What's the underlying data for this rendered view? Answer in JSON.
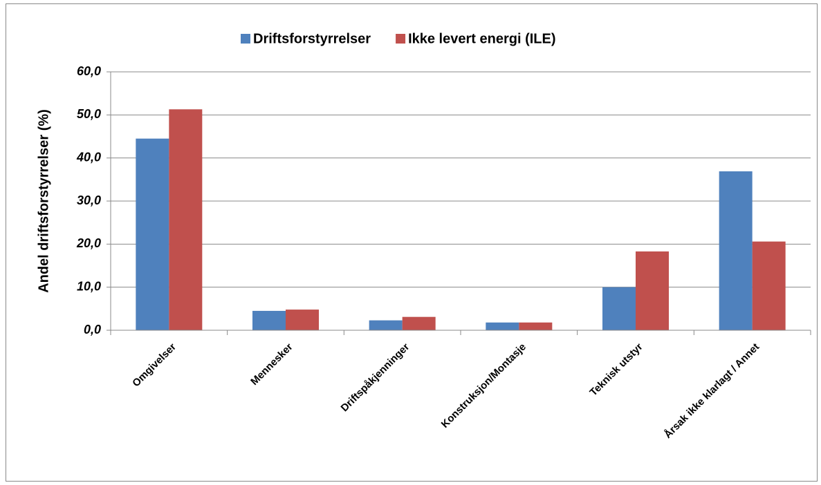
{
  "chart_data": {
    "type": "bar",
    "y_label": "Andel driftsforstyrrelser (%)",
    "categories": [
      "Omgivelser",
      "Mennesker",
      "Driftspåkjenninger",
      "Konstruksjon/Montasje",
      "Teknisk utstyr",
      "Årsak ikke klarlagt / Annet"
    ],
    "series": [
      {
        "name": "Driftsforstyrrelser",
        "color": "#4f81bd",
        "values": [
          44.5,
          4.5,
          2.3,
          1.8,
          10.0,
          36.9
        ]
      },
      {
        "name": "Ikke levert energi (ILE)",
        "color": "#c0504d",
        "values": [
          51.3,
          4.8,
          3.1,
          1.8,
          18.3,
          20.6
        ]
      }
    ],
    "ylim": [
      0,
      60
    ],
    "yticks": [
      {
        "value": 0,
        "label": "0,0"
      },
      {
        "value": 10,
        "label": "10,0"
      },
      {
        "value": 20,
        "label": "20,0"
      },
      {
        "value": 30,
        "label": "30,0"
      },
      {
        "value": 40,
        "label": "40,0"
      },
      {
        "value": 50,
        "label": "50,0"
      },
      {
        "value": 60,
        "label": "60,0"
      }
    ],
    "grid": true,
    "legend": "top"
  }
}
